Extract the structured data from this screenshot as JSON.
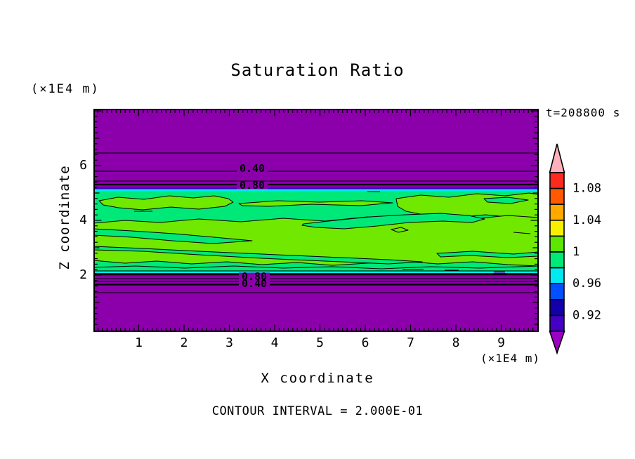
{
  "title": "Saturation Ratio",
  "time_label": "t=208800 s",
  "caption": "CONTOUR INTERVAL = 2.000E-01",
  "axes": {
    "x": {
      "label": "X coordinate",
      "unit": "(×1E4 m)",
      "tick_labels": [
        "1",
        "2",
        "3",
        "4",
        "5",
        "6",
        "7",
        "8",
        "9"
      ],
      "tick_values": [
        1,
        2,
        3,
        4,
        5,
        6,
        7,
        8,
        9
      ],
      "range": [
        0,
        9.84
      ]
    },
    "z": {
      "label": "Z coordinate",
      "unit": "(×1E4 m)",
      "tick_labels": [
        "6",
        "4",
        "2"
      ],
      "tick_values": [
        6,
        4,
        2
      ],
      "range": [
        0,
        8.15
      ]
    }
  },
  "colorbar": {
    "labels": [
      "1.08",
      "1.04",
      "1",
      "0.96",
      "0.92"
    ],
    "label_values": [
      1.08,
      1.04,
      1.0,
      0.96,
      0.92
    ],
    "segment_colors": [
      "#ff2a1e",
      "#ff5a00",
      "#ffa800",
      "#f8f000",
      "#5ce600",
      "#00e878",
      "#00e8f0",
      "#0050ff",
      "#1400aa",
      "#4400c4"
    ],
    "segment_values_top_to_bottom": [
      [
        1.08,
        1.1
      ],
      [
        1.06,
        1.08
      ],
      [
        1.04,
        1.06
      ],
      [
        1.02,
        1.04
      ],
      [
        1.0,
        1.02
      ],
      [
        0.98,
        1.0
      ],
      [
        0.96,
        0.98
      ],
      [
        0.94,
        0.96
      ],
      [
        0.92,
        0.94
      ],
      [
        0.9,
        0.92
      ]
    ],
    "above_color": "#ffb0bc",
    "below_color": "#9c00c4"
  },
  "contour_labels": {
    "top": [
      "0.40",
      "0.80"
    ],
    "bottom": [
      "0.80",
      "0.40"
    ]
  },
  "colors": {
    "purple": "#8c00ac",
    "spring": "#00e878",
    "chartreuse": "#70e800",
    "cyan": "#00e8f0",
    "indigo": "#3c00c8",
    "line": "#000000",
    "background": "#ffffff"
  },
  "chart_data": {
    "type": "heatmap",
    "title": "Saturation Ratio",
    "xlabel": "X coordinate (×1E4 m)",
    "ylabel": "Z coordinate (×1E4 m)",
    "xlim": [
      0,
      9.84
    ],
    "ylim": [
      0,
      8.15
    ],
    "time": "t=208800 s",
    "contour_interval": 0.2,
    "line_contour_levels": [
      0.2,
      0.4,
      0.6,
      0.8,
      1.0
    ],
    "fill_levels": [
      0.9,
      0.92,
      0.94,
      0.96,
      0.98,
      1.0,
      1.02,
      1.04,
      1.06,
      1.08,
      1.1
    ],
    "legend_position": "right",
    "description": "Horizontally stratified saturation-ratio field: S below 0.9 (purple) near top and bottom boundaries, sharp gradient layers near z≈2 and z≈5.2 (×1E4 m), and a nearly saturated cloud layer (S≈0.98–1.02, green bands) between z≈2.1 and z≈5.1 with wavy S=1.0 contour lines meandering across the full x range.",
    "vertical_profile": {
      "z": [
        0,
        1.36,
        1.65,
        1.77,
        1.87,
        2.05,
        2.3,
        3.0,
        4.0,
        4.7,
        5.15,
        5.31,
        5.44,
        5.79,
        6.46,
        8.15
      ],
      "saturation": [
        0.05,
        0.2,
        0.4,
        0.6,
        0.8,
        0.97,
        1.0,
        1.01,
        1.0,
        1.01,
        0.97,
        0.8,
        0.6,
        0.4,
        0.2,
        0.05
      ]
    }
  }
}
